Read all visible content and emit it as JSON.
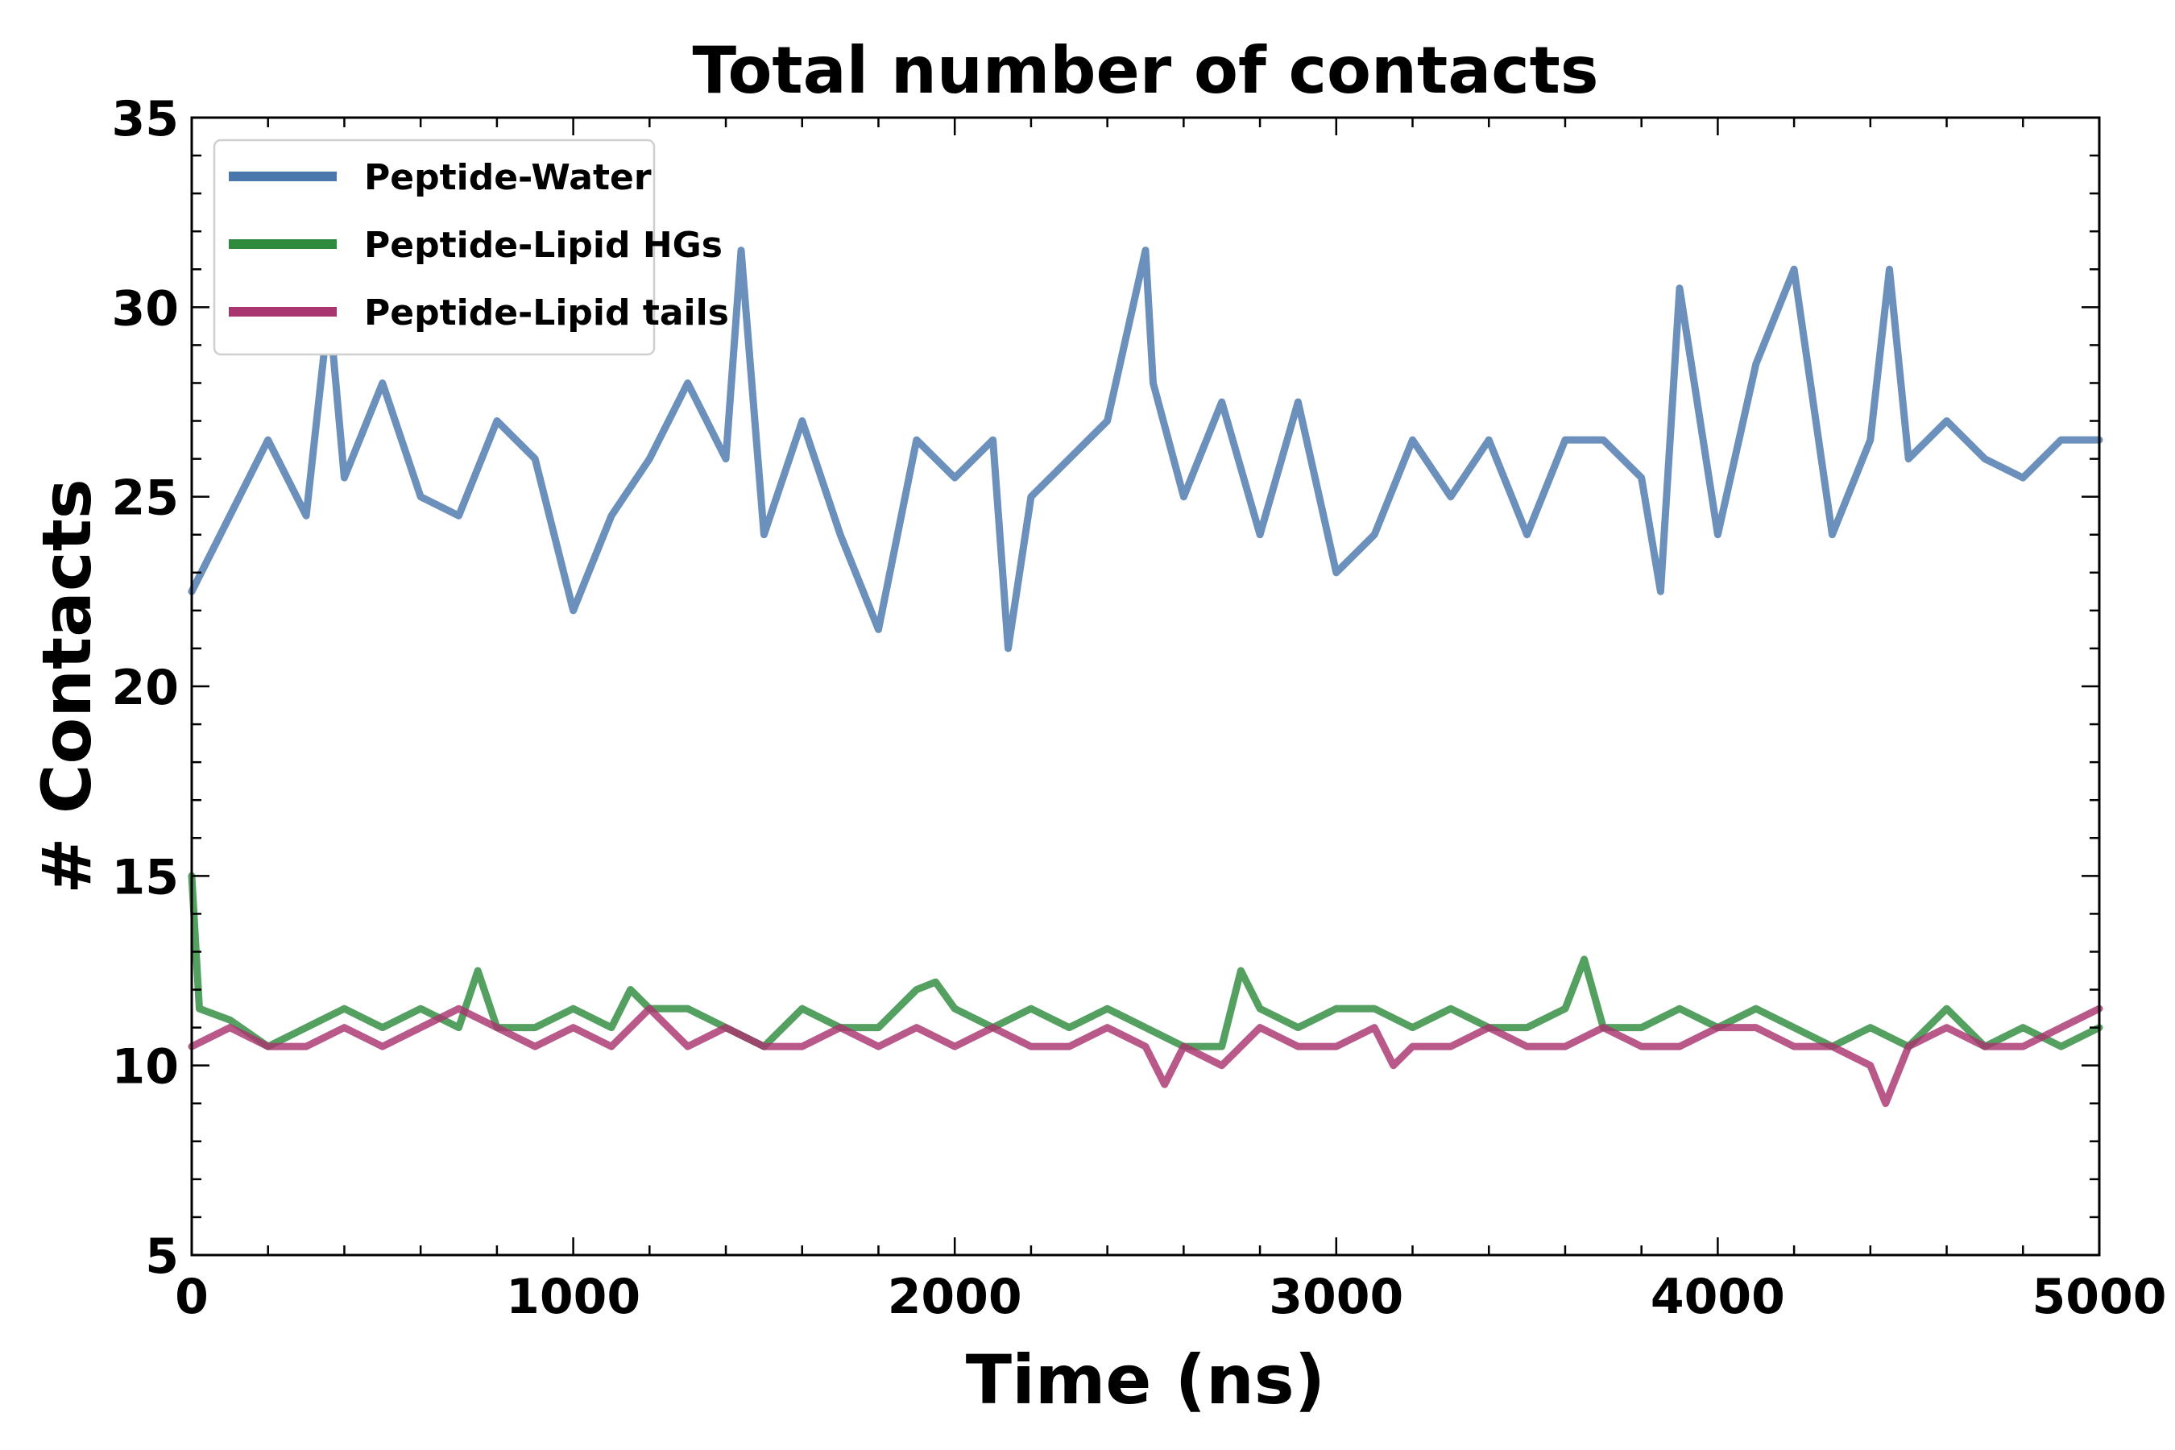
{
  "chart_data": {
    "type": "line",
    "title": "Total number of contacts",
    "xlabel": "Time (ns)",
    "ylabel": "# Contacts",
    "xlim": [
      0,
      5000
    ],
    "ylim": [
      5,
      35
    ],
    "xticks": [
      0,
      1000,
      2000,
      3000,
      4000,
      5000
    ],
    "yticks": [
      5,
      10,
      15,
      20,
      25,
      30,
      35
    ],
    "legend_position": "top-left",
    "grid": false,
    "series": [
      {
        "name": "Peptide-Water",
        "color": "#4a78ac",
        "x": [
          0,
          100,
          200,
          300,
          360,
          400,
          500,
          600,
          700,
          800,
          900,
          1000,
          1100,
          1200,
          1300,
          1400,
          1440,
          1500,
          1600,
          1700,
          1800,
          1900,
          2000,
          2100,
          2140,
          2200,
          2300,
          2400,
          2500,
          2520,
          2600,
          2700,
          2800,
          2900,
          3000,
          3100,
          3200,
          3300,
          3400,
          3500,
          3600,
          3700,
          3800,
          3850,
          3900,
          4000,
          4100,
          4200,
          4300,
          4400,
          4450,
          4500,
          4600,
          4700,
          4800,
          4900,
          5000
        ],
        "y": [
          22.5,
          24.5,
          26.5,
          24.5,
          30,
          25.5,
          28,
          25,
          24.5,
          27,
          26,
          22,
          24.5,
          26,
          28,
          26,
          31.5,
          24,
          27,
          24,
          21.5,
          26.5,
          25.5,
          26.5,
          21,
          25,
          26,
          27,
          31.5,
          28,
          25,
          27.5,
          24,
          27.5,
          23,
          24,
          26.5,
          25,
          26.5,
          24,
          26.5,
          26.5,
          25.5,
          22.5,
          30.5,
          24,
          28.5,
          31,
          24,
          26.5,
          31,
          26,
          27,
          26,
          25.5,
          26.5,
          26.5
        ]
      },
      {
        "name": "Peptide-Lipid HGs",
        "color": "#2e8b3e",
        "x": [
          0,
          20,
          100,
          200,
          300,
          400,
          500,
          600,
          700,
          750,
          800,
          900,
          1000,
          1100,
          1150,
          1200,
          1300,
          1400,
          1500,
          1600,
          1700,
          1800,
          1900,
          1950,
          2000,
          2100,
          2200,
          2300,
          2400,
          2500,
          2600,
          2700,
          2750,
          2800,
          2900,
          3000,
          3100,
          3200,
          3300,
          3400,
          3500,
          3600,
          3650,
          3700,
          3800,
          3900,
          4000,
          4100,
          4200,
          4300,
          4400,
          4500,
          4600,
          4700,
          4800,
          4900,
          5000
        ],
        "y": [
          15,
          11.5,
          11.2,
          10.5,
          11,
          11.5,
          11,
          11.5,
          11,
          12.5,
          11,
          11,
          11.5,
          11,
          12,
          11.5,
          11.5,
          11,
          10.5,
          11.5,
          11,
          11,
          12,
          12.2,
          11.5,
          11,
          11.5,
          11,
          11.5,
          11,
          10.5,
          10.5,
          12.5,
          11.5,
          11,
          11.5,
          11.5,
          11,
          11.5,
          11,
          11,
          11.5,
          12.8,
          11,
          11,
          11.5,
          11,
          11.5,
          11,
          10.5,
          11,
          10.5,
          11.5,
          10.5,
          11,
          10.5,
          11
        ]
      },
      {
        "name": "Peptide-Lipid tails",
        "color": "#a8356f",
        "x": [
          0,
          100,
          200,
          300,
          400,
          500,
          600,
          700,
          800,
          900,
          1000,
          1100,
          1200,
          1300,
          1400,
          1500,
          1600,
          1700,
          1800,
          1900,
          2000,
          2100,
          2200,
          2300,
          2400,
          2500,
          2550,
          2600,
          2700,
          2800,
          2900,
          3000,
          3100,
          3150,
          3200,
          3300,
          3400,
          3500,
          3600,
          3700,
          3800,
          3900,
          4000,
          4100,
          4200,
          4300,
          4400,
          4440,
          4500,
          4600,
          4700,
          4800,
          4900,
          5000
        ],
        "y": [
          10.5,
          11,
          10.5,
          10.5,
          11,
          10.5,
          11,
          11.5,
          11,
          10.5,
          11,
          10.5,
          11.5,
          10.5,
          11,
          10.5,
          10.5,
          11,
          10.5,
          11,
          10.5,
          11,
          10.5,
          10.5,
          11,
          10.5,
          9.5,
          10.5,
          10,
          11,
          10.5,
          10.5,
          11,
          10,
          10.5,
          10.5,
          11,
          10.5,
          10.5,
          11,
          10.5,
          10.5,
          11,
          11,
          10.5,
          10.5,
          10,
          9,
          10.5,
          11,
          10.5,
          10.5,
          11,
          11.5
        ]
      }
    ]
  }
}
